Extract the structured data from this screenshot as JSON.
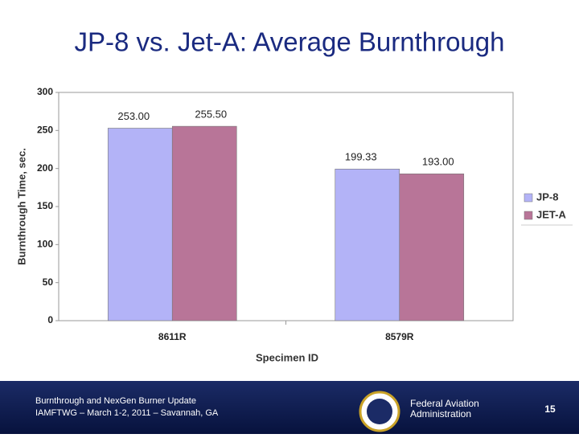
{
  "chart_data": {
    "type": "bar",
    "title": "JP-8 vs. Jet-A:  Average Burnthrough",
    "x_label": "Specimen ID",
    "y_label": "Burnthrough Time, sec.",
    "categories": [
      "8611R",
      "8579R"
    ],
    "series": [
      {
        "name": "JP-8",
        "color": "#b3b3f7",
        "values": [
          253,
          199.33
        ],
        "value_labels": [
          "253.00",
          "199.33"
        ]
      },
      {
        "name": "JET-A",
        "color": "#b87598",
        "values": [
          255.5,
          193
        ],
        "value_labels": [
          "255.50",
          "193.00"
        ]
      }
    ],
    "ylim": [
      0,
      300
    ],
    "yticks": [
      0,
      50,
      100,
      150,
      200,
      250,
      300
    ],
    "grid": false,
    "legend": "right"
  },
  "footer": {
    "line1": "Burnthrough and NexGen Burner Update",
    "line2": "IAMFTWG – March 1-2, 2011 – Savannah, GA",
    "agency1": "Federal Aviation",
    "agency2": "Administration",
    "page": "15"
  }
}
